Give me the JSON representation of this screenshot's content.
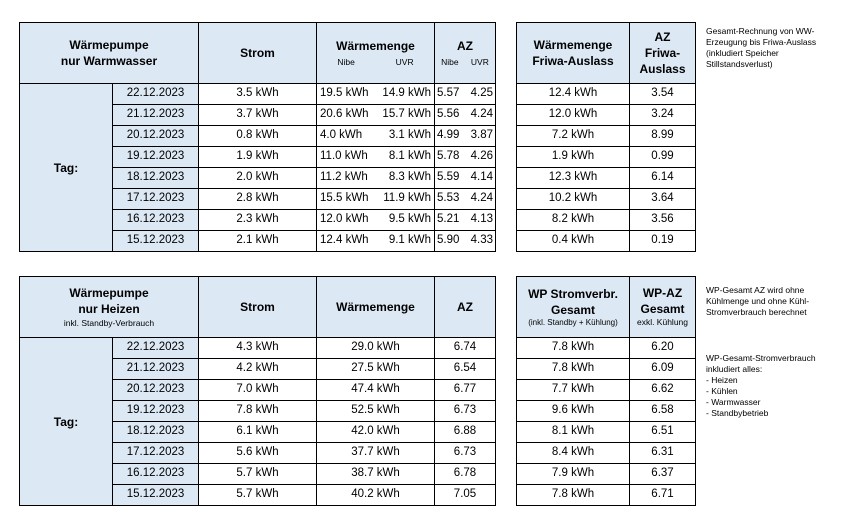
{
  "dates": [
    "22.12.2023",
    "21.12.2023",
    "20.12.2023",
    "19.12.2023",
    "18.12.2023",
    "17.12.2023",
    "16.12.2023",
    "15.12.2023"
  ],
  "tag_label": "Tag:",
  "t1": {
    "title1": "Wärmepumpe",
    "title2": "nur Warmwasser",
    "strom_h": "Strom",
    "waerme_h": "Wärmemenge",
    "nibe_h": "Nibe",
    "uvr_h": "UVR",
    "az_h": "AZ",
    "az_nibe_h": "Nibe",
    "az_uvr_h": "UVR",
    "rows": [
      {
        "strom": "3.5 kWh",
        "nibe": "19.5 kWh",
        "uvr": "14.9 kWh",
        "az_nibe": "5.57",
        "az_uvr": "4.25"
      },
      {
        "strom": "3.7 kWh",
        "nibe": "20.6 kWh",
        "uvr": "15.7 kWh",
        "az_nibe": "5.56",
        "az_uvr": "4.24"
      },
      {
        "strom": "0.8 kWh",
        "nibe": "4.0 kWh",
        "uvr": "3.1 kWh",
        "az_nibe": "4.99",
        "az_uvr": "3.87"
      },
      {
        "strom": "1.9 kWh",
        "nibe": "11.0 kWh",
        "uvr": "8.1 kWh",
        "az_nibe": "5.78",
        "az_uvr": "4.26"
      },
      {
        "strom": "2.0 kWh",
        "nibe": "11.2 kWh",
        "uvr": "8.3 kWh",
        "az_nibe": "5.59",
        "az_uvr": "4.14"
      },
      {
        "strom": "2.8 kWh",
        "nibe": "15.5 kWh",
        "uvr": "11.9 kWh",
        "az_nibe": "5.53",
        "az_uvr": "4.24"
      },
      {
        "strom": "2.3 kWh",
        "nibe": "12.0 kWh",
        "uvr": "9.5 kWh",
        "az_nibe": "5.21",
        "az_uvr": "4.13"
      },
      {
        "strom": "2.1 kWh",
        "nibe": "12.4 kWh",
        "uvr": "9.1 kWh",
        "az_nibe": "5.90",
        "az_uvr": "4.33"
      }
    ]
  },
  "t2": {
    "h1a": "Wärmemenge",
    "h1b": "Friwa-Auslass",
    "h2a": "AZ",
    "h2b": "Friwa-",
    "h2c": "Auslass",
    "rows": [
      {
        "w": "12.4 kWh",
        "az": "3.54"
      },
      {
        "w": "12.0 kWh",
        "az": "3.24"
      },
      {
        "w": "7.2 kWh",
        "az": "8.99"
      },
      {
        "w": "1.9 kWh",
        "az": "0.99"
      },
      {
        "w": "12.3 kWh",
        "az": "6.14"
      },
      {
        "w": "10.2 kWh",
        "az": "3.64"
      },
      {
        "w": "8.2 kWh",
        "az": "3.56"
      },
      {
        "w": "0.4 kWh",
        "az": "0.19"
      }
    ]
  },
  "note1": [
    "Gesamt-Rechnung von WW-",
    "Erzeugung  bis Friwa-Auslass",
    "(inkludiert Speicher",
    "Stillstandsverlust)"
  ],
  "t3": {
    "title1": "Wärmepumpe",
    "title2": "nur Heizen",
    "sub": "inkl. Standby-Verbrauch",
    "strom_h": "Strom",
    "waerme_h": "Wärmemenge",
    "az_h": "AZ",
    "rows": [
      {
        "strom": "4.3 kWh",
        "w": "29.0 kWh",
        "az": "6.74"
      },
      {
        "strom": "4.2 kWh",
        "w": "27.5 kWh",
        "az": "6.54"
      },
      {
        "strom": "7.0 kWh",
        "w": "47.4 kWh",
        "az": "6.77"
      },
      {
        "strom": "7.8 kWh",
        "w": "52.5 kWh",
        "az": "6.73"
      },
      {
        "strom": "6.1 kWh",
        "w": "42.0 kWh",
        "az": "6.88"
      },
      {
        "strom": "5.6 kWh",
        "w": "37.7 kWh",
        "az": "6.73"
      },
      {
        "strom": "5.7 kWh",
        "w": "38.7 kWh",
        "az": "6.78"
      },
      {
        "strom": "5.7 kWh",
        "w": "40.2 kWh",
        "az": "7.05"
      }
    ]
  },
  "t4": {
    "h1a": "WP Stromverbr.",
    "h1b": "Gesamt",
    "h1c": "(inkl. Standby + Kühlung)",
    "h2a": "WP-AZ",
    "h2b": "Gesamt",
    "h2c": "exkl. Kühlung",
    "rows": [
      {
        "s": "7.8 kWh",
        "az": "6.20"
      },
      {
        "s": "7.8 kWh",
        "az": "6.09"
      },
      {
        "s": "7.7 kWh",
        "az": "6.62"
      },
      {
        "s": "9.6 kWh",
        "az": "6.58"
      },
      {
        "s": "8.1 kWh",
        "az": "6.51"
      },
      {
        "s": "8.4 kWh",
        "az": "6.31"
      },
      {
        "s": "7.9 kWh",
        "az": "6.37"
      },
      {
        "s": "7.8 kWh",
        "az": "6.71"
      }
    ]
  },
  "note2": [
    "WP-Gesamt AZ wird ohne",
    "Kühlmenge und ohne Kühl-",
    "Stromverbrauch berechnet"
  ],
  "note3": [
    "WP-Gesamt-Stromverbrauch",
    "inkludiert alles:",
    "- Heizen",
    "- Kühlen",
    "- Warmwasser",
    "- Standbybetrieb"
  ]
}
